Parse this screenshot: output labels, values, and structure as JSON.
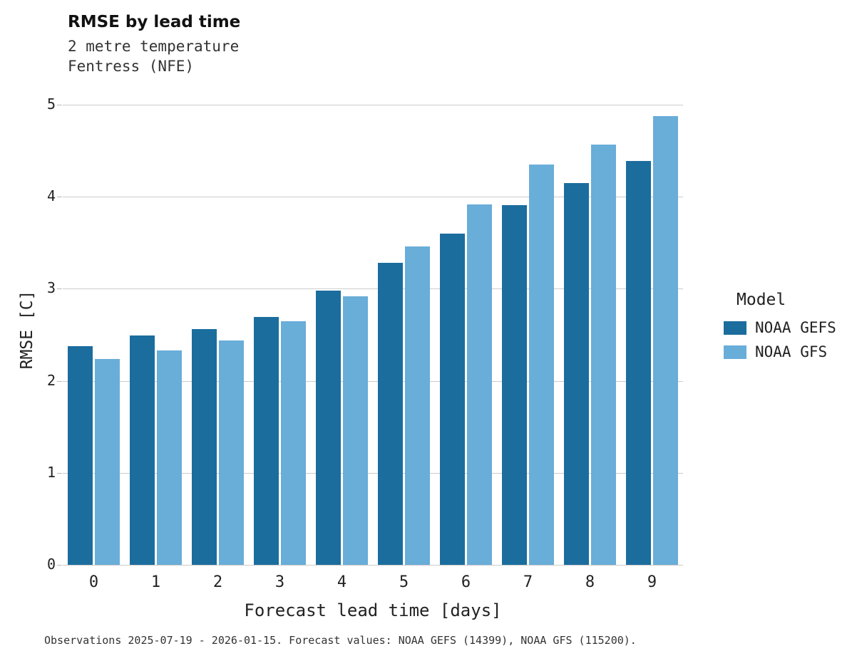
{
  "title": "RMSE by lead time",
  "subtitle_line1": "2 metre temperature",
  "subtitle_line2": "Fentress (NFE)",
  "caption": "Observations 2025-07-19 - 2026-01-15. Forecast values: NOAA GEFS (14399), NOAA GFS (115200).",
  "legend": {
    "title": "Model",
    "entries": [
      {
        "label": "NOAA GEFS",
        "color": "#1b6d9e"
      },
      {
        "label": "NOAA GFS",
        "color": "#69add9"
      }
    ]
  },
  "chart_data": {
    "type": "bar",
    "title": "RMSE by lead time",
    "subtitle": [
      "2 metre temperature",
      "Fentress (NFE)"
    ],
    "xlabel": "Forecast lead time [days]",
    "ylabel": "RMSE [C]",
    "categories": [
      "0",
      "1",
      "2",
      "3",
      "4",
      "5",
      "6",
      "7",
      "8",
      "9"
    ],
    "series": [
      {
        "name": "NOAA GEFS",
        "color": "#1b6d9e",
        "values": [
          2.38,
          2.49,
          2.56,
          2.69,
          2.98,
          3.28,
          3.6,
          3.91,
          4.15,
          4.39
        ]
      },
      {
        "name": "NOAA GFS",
        "color": "#69add9",
        "values": [
          2.24,
          2.33,
          2.44,
          2.65,
          2.92,
          3.46,
          3.92,
          4.35,
          4.57,
          4.88
        ]
      }
    ],
    "ylim": [
      0,
      5
    ],
    "yticks": [
      0,
      1,
      2,
      3,
      4,
      5
    ],
    "grid": true,
    "legend_position": "right",
    "legend_title": "Model"
  }
}
